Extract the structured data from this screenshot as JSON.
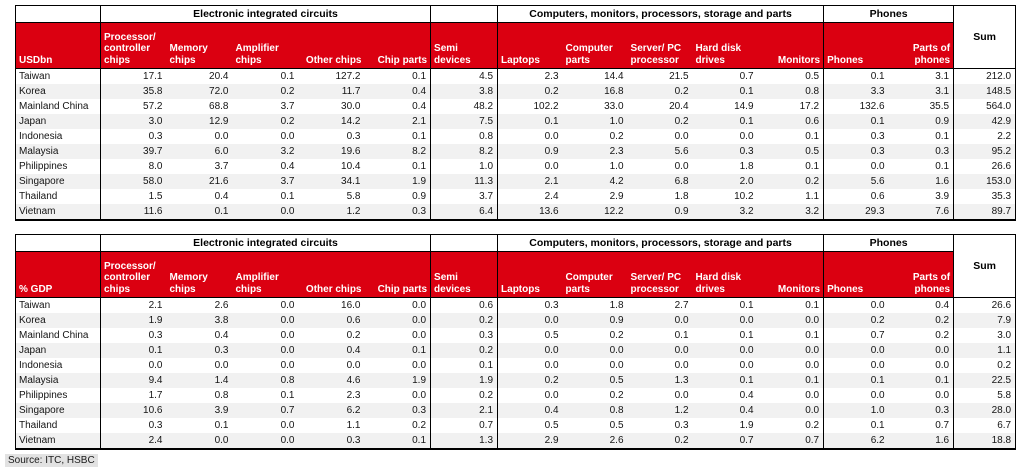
{
  "accent_red": "#DB0011",
  "stripe_color": "#F1F1F1",
  "source": "Source: ITC, HSBC",
  "sum_label": "Sum",
  "column_groups": [
    {
      "label": "",
      "span": 1,
      "boxed": true
    },
    {
      "label": "Electronic integrated circuits",
      "span": 5,
      "boxed": true
    },
    {
      "label": "",
      "span": 1,
      "boxed": true
    },
    {
      "label": "Computers, monitors, processors, storage and parts",
      "span": 5,
      "boxed": true
    },
    {
      "label": "Phones",
      "span": 2,
      "boxed": true
    }
  ],
  "columns": [
    "Processor/ controller chips",
    "Memory chips",
    "Amplifier chips",
    "Other chips",
    "Chip parts",
    "Semi devices",
    "Laptops",
    "Computer parts",
    "Server/ PC processor",
    "Hard disk drives",
    "Monitors",
    "Phones",
    "Parts of phones"
  ],
  "tables": [
    {
      "unit_label": "USDbn",
      "rows": [
        {
          "label": "Taiwan",
          "values": [
            "17.1",
            "20.4",
            "0.1",
            "127.2",
            "0.1",
            "4.5",
            "2.3",
            "14.4",
            "21.5",
            "0.7",
            "0.5",
            "0.1",
            "3.1",
            "212.0"
          ]
        },
        {
          "label": "Korea",
          "values": [
            "35.8",
            "72.0",
            "0.2",
            "11.7",
            "0.4",
            "3.8",
            "0.2",
            "16.8",
            "0.2",
            "0.1",
            "0.8",
            "3.3",
            "3.1",
            "148.5"
          ]
        },
        {
          "label": "Mainland China",
          "values": [
            "57.2",
            "68.8",
            "3.7",
            "30.0",
            "0.4",
            "48.2",
            "102.2",
            "33.0",
            "20.4",
            "14.9",
            "17.2",
            "132.6",
            "35.5",
            "564.0"
          ]
        },
        {
          "label": "Japan",
          "values": [
            "3.0",
            "12.9",
            "0.2",
            "14.2",
            "2.1",
            "7.5",
            "0.1",
            "1.0",
            "0.2",
            "0.1",
            "0.6",
            "0.1",
            "0.9",
            "42.9"
          ]
        },
        {
          "label": "Indonesia",
          "values": [
            "0.3",
            "0.0",
            "0.0",
            "0.3",
            "0.1",
            "0.8",
            "0.0",
            "0.2",
            "0.0",
            "0.0",
            "0.1",
            "0.3",
            "0.1",
            "2.2"
          ]
        },
        {
          "label": "Malaysia",
          "values": [
            "39.7",
            "6.0",
            "3.2",
            "19.6",
            "8.2",
            "8.2",
            "0.9",
            "2.3",
            "5.6",
            "0.3",
            "0.5",
            "0.3",
            "0.3",
            "95.2"
          ]
        },
        {
          "label": "Philippines",
          "values": [
            "8.0",
            "3.7",
            "0.4",
            "10.4",
            "0.1",
            "1.0",
            "0.0",
            "1.0",
            "0.0",
            "1.8",
            "0.1",
            "0.0",
            "0.1",
            "26.6"
          ]
        },
        {
          "label": "Singapore",
          "values": [
            "58.0",
            "21.6",
            "3.7",
            "34.1",
            "1.9",
            "11.3",
            "2.1",
            "4.2",
            "6.8",
            "2.0",
            "0.2",
            "5.6",
            "1.6",
            "153.0"
          ]
        },
        {
          "label": "Thailand",
          "values": [
            "1.5",
            "0.4",
            "0.1",
            "5.8",
            "0.9",
            "3.7",
            "2.4",
            "2.9",
            "1.8",
            "10.2",
            "1.1",
            "0.6",
            "3.9",
            "35.3"
          ]
        },
        {
          "label": "Vietnam",
          "values": [
            "11.6",
            "0.1",
            "0.0",
            "1.2",
            "0.3",
            "6.4",
            "13.6",
            "12.2",
            "0.9",
            "3.2",
            "3.2",
            "29.3",
            "7.6",
            "89.7"
          ]
        }
      ]
    },
    {
      "unit_label": "% GDP",
      "rows": [
        {
          "label": "Taiwan",
          "values": [
            "2.1",
            "2.6",
            "0.0",
            "16.0",
            "0.0",
            "0.6",
            "0.3",
            "1.8",
            "2.7",
            "0.1",
            "0.1",
            "0.0",
            "0.4",
            "26.6"
          ]
        },
        {
          "label": "Korea",
          "values": [
            "1.9",
            "3.8",
            "0.0",
            "0.6",
            "0.0",
            "0.2",
            "0.0",
            "0.9",
            "0.0",
            "0.0",
            "0.0",
            "0.2",
            "0.2",
            "7.9"
          ]
        },
        {
          "label": "Mainland China",
          "values": [
            "0.3",
            "0.4",
            "0.0",
            "0.2",
            "0.0",
            "0.3",
            "0.5",
            "0.2",
            "0.1",
            "0.1",
            "0.1",
            "0.7",
            "0.2",
            "3.0"
          ]
        },
        {
          "label": "Japan",
          "values": [
            "0.1",
            "0.3",
            "0.0",
            "0.4",
            "0.1",
            "0.2",
            "0.0",
            "0.0",
            "0.0",
            "0.0",
            "0.0",
            "0.0",
            "0.0",
            "1.1"
          ]
        },
        {
          "label": "Indonesia",
          "values": [
            "0.0",
            "0.0",
            "0.0",
            "0.0",
            "0.0",
            "0.1",
            "0.0",
            "0.0",
            "0.0",
            "0.0",
            "0.0",
            "0.0",
            "0.0",
            "0.2"
          ]
        },
        {
          "label": "Malaysia",
          "values": [
            "9.4",
            "1.4",
            "0.8",
            "4.6",
            "1.9",
            "1.9",
            "0.2",
            "0.5",
            "1.3",
            "0.1",
            "0.1",
            "0.1",
            "0.1",
            "22.5"
          ]
        },
        {
          "label": "Philippines",
          "values": [
            "1.7",
            "0.8",
            "0.1",
            "2.3",
            "0.0",
            "0.2",
            "0.0",
            "0.2",
            "0.0",
            "0.4",
            "0.0",
            "0.0",
            "0.0",
            "5.8"
          ]
        },
        {
          "label": "Singapore",
          "values": [
            "10.6",
            "3.9",
            "0.7",
            "6.2",
            "0.3",
            "2.1",
            "0.4",
            "0.8",
            "1.2",
            "0.4",
            "0.0",
            "1.0",
            "0.3",
            "28.0"
          ]
        },
        {
          "label": "Thailand",
          "values": [
            "0.3",
            "0.1",
            "0.0",
            "1.1",
            "0.2",
            "0.7",
            "0.5",
            "0.5",
            "0.3",
            "1.9",
            "0.2",
            "0.1",
            "0.7",
            "6.7"
          ]
        },
        {
          "label": "Vietnam",
          "values": [
            "2.4",
            "0.0",
            "0.0",
            "0.3",
            "0.1",
            "1.3",
            "2.9",
            "2.6",
            "0.2",
            "0.7",
            "0.7",
            "6.2",
            "1.6",
            "18.8"
          ]
        }
      ]
    }
  ]
}
